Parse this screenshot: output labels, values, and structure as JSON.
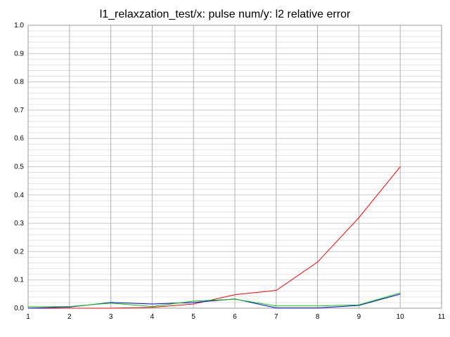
{
  "chart_data": {
    "type": "line",
    "title": "l1_relaxzation_test/x: pulse num/y: l2 relative error",
    "xlabel": "",
    "ylabel": "",
    "xlim": [
      1,
      11
    ],
    "ylim": [
      0.0,
      1.0
    ],
    "xticks": [
      "1",
      "2",
      "3",
      "4",
      "5",
      "6",
      "7",
      "8",
      "9",
      "10",
      "11"
    ],
    "yticks": [
      "0.0",
      "0.1",
      "0.2",
      "0.3",
      "0.4",
      "0.5",
      "0.6",
      "0.7",
      "0.8",
      "0.9",
      "1.0"
    ],
    "grid": true,
    "x": [
      1,
      2,
      3,
      4,
      5,
      6,
      7,
      8,
      9,
      10
    ],
    "series": [
      {
        "color": "#ff0000",
        "values": [
          0.0,
          0.0,
          0.0,
          0.003,
          0.015,
          0.048,
          0.063,
          0.163,
          0.32,
          0.5
        ]
      },
      {
        "color": "#0000ff",
        "values": [
          0.0,
          0.004,
          0.02,
          0.015,
          0.02,
          0.033,
          0.001,
          0.001,
          0.01,
          0.05
        ]
      },
      {
        "color": "#00cc00",
        "values": [
          0.005,
          0.006,
          0.018,
          0.006,
          0.025,
          0.032,
          0.008,
          0.008,
          0.012,
          0.054
        ]
      }
    ]
  }
}
